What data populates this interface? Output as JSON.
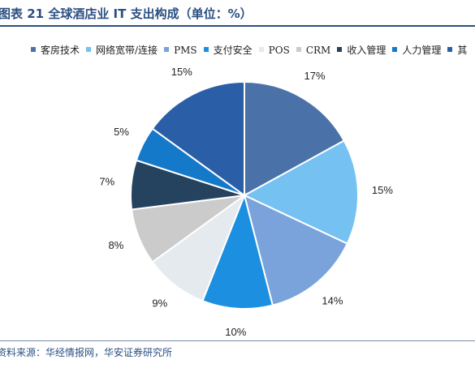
{
  "figure": {
    "title": "图表 21 全球酒店业 IT 支出构成（单位：%）",
    "source": "资料来源：华经情报网，华安证券研究所"
  },
  "chart_data": {
    "type": "pie",
    "title": "",
    "labels": [
      "客房技术",
      "网络宽带/连接",
      "PMS",
      "支付安全",
      "POS",
      "CRM",
      "收入管理",
      "人力管理",
      "其他"
    ],
    "legend_visible": [
      "客房技术",
      "网络宽带/连接",
      "PMS",
      "支付安全",
      "POS",
      "CRM",
      "收入管理",
      "人力管理",
      "其"
    ],
    "values": [
      17,
      15,
      14,
      10,
      9,
      8,
      7,
      5,
      15
    ],
    "value_labels": [
      "17%",
      "15%",
      "14%",
      "10%",
      "9%",
      "8%",
      "7%",
      "5%",
      "15%"
    ],
    "colors": [
      "#4a72a8",
      "#74c1f2",
      "#7aa3db",
      "#1d8fe0",
      "#e4eaed",
      "#cbcbcb",
      "#25425f",
      "#1479c9",
      "#2a5ea6"
    ],
    "start_angle_deg": 0,
    "direction": "clockwise",
    "legend_position": "top"
  }
}
